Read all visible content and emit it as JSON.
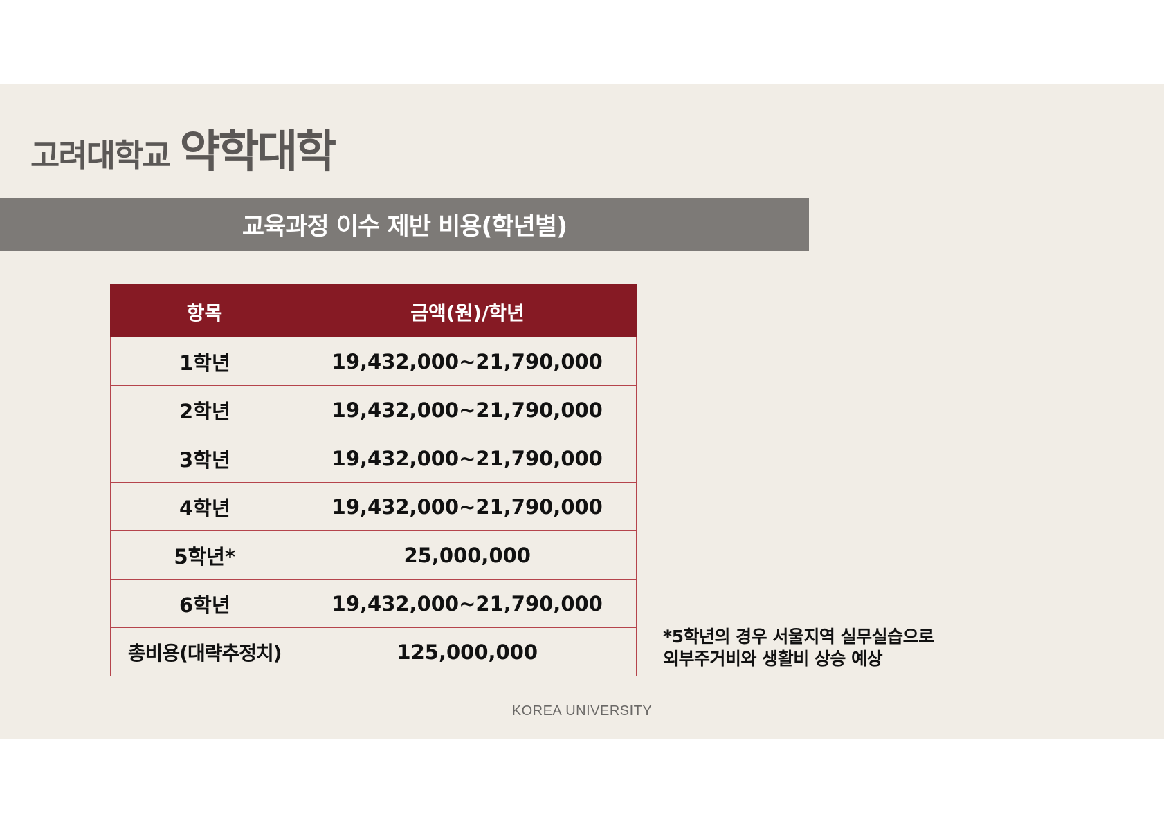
{
  "header": {
    "title_small": "고려대학교",
    "title_big": "약학대학"
  },
  "banner": {
    "label": "교육과정 이수 제반 비용(학년별)"
  },
  "table": {
    "headers": [
      "항목",
      "금액(원)/학년"
    ],
    "rows": [
      {
        "label": "1학년",
        "amount": "19,432,000~21,790,000"
      },
      {
        "label": "2학년",
        "amount": "19,432,000~21,790,000"
      },
      {
        "label": "3학년",
        "amount": "19,432,000~21,790,000"
      },
      {
        "label": "4학년",
        "amount": "19,432,000~21,790,000"
      },
      {
        "label": "5학년*",
        "amount": "25,000,000"
      },
      {
        "label": "6학년",
        "amount": "19,432,000~21,790,000"
      },
      {
        "label": "총비용(대략추정치)",
        "amount": "125,000,000"
      }
    ]
  },
  "note": {
    "line1": "*5학년의 경우 서울지역 실무실습으로",
    "line2": "외부주거비와 생활비 상승 예상"
  },
  "footer": {
    "text": "KOREA UNIVERSITY"
  },
  "colors": {
    "background": "#f1ede6",
    "banner": "#7d7a77",
    "table_header": "#861a24",
    "table_border": "#b5444c"
  }
}
